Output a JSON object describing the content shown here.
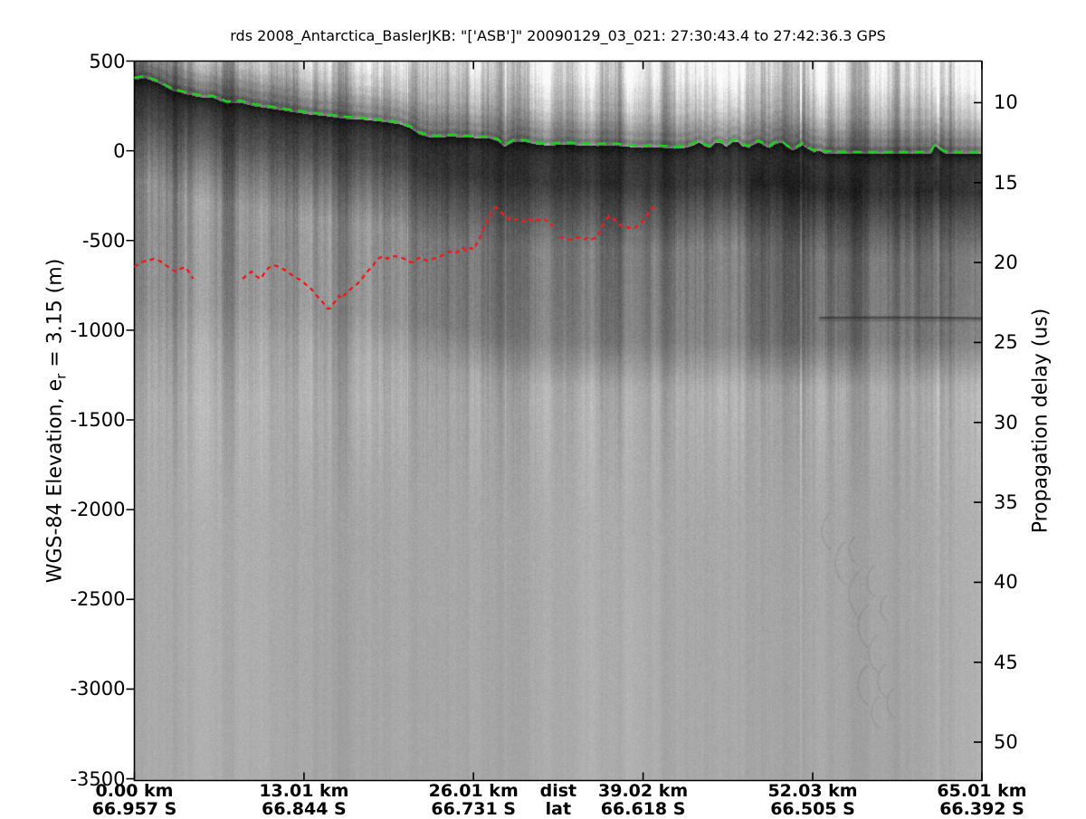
{
  "title": "rds 2008_Antarctica_BaslerJKB: \"['ASB']\"  20090129_03_021: 27:30:43.4 to 27:42:36.3 GPS",
  "axes": {
    "left": {
      "label_pre": "WGS-84 Elevation, e",
      "label_sub": "r",
      "label_post": " = 3.15 (m)",
      "ticks": [
        500,
        0,
        -500,
        -1000,
        -1500,
        -2000,
        -2500,
        -3000,
        -3500
      ]
    },
    "right": {
      "label": "Propagation delay (us)",
      "ticks": [
        10,
        15,
        20,
        25,
        30,
        35,
        40,
        45,
        50
      ]
    },
    "bottom": {
      "dist_label": "dist",
      "lat_label": "lat",
      "km_values": [
        0.0,
        13.01,
        26.01,
        39.02,
        52.03,
        65.01
      ],
      "dist_ticks": [
        "0.00 km",
        "13.01 km",
        "26.01 km",
        "39.02 km",
        "52.03 km",
        "65.01 km"
      ],
      "lat_ticks": [
        "66.957 S",
        "66.844 S",
        "66.731 S",
        "66.618 S",
        "66.505 S",
        "66.392 S"
      ]
    }
  },
  "chart_data": {
    "type": "heatmap",
    "subtype": "ice-penetrating-radargram",
    "title": "rds 2008_Antarctica_BaslerJKB: \"['ASB']\"  20090129_03_021: 27:30:43.4 to 27:42:36.3 GPS",
    "xlabel_rows": [
      "dist (km)",
      "lat (deg S)"
    ],
    "ylabel_left": "WGS-84 Elevation, e_r = 3.15 (m)",
    "ylabel_right": "Propagation delay (us)",
    "xlim": [
      0,
      65.01
    ],
    "ylim_left": [
      500,
      -3510
    ],
    "ylim_right": [
      7.4,
      52.4
    ],
    "grid": false,
    "colors": {
      "surface_pick": "#1ad21a",
      "bed_pick": "#ee1c1c",
      "frame": "#000000"
    },
    "surface_pick_km_m": [
      [
        0,
        397
      ],
      [
        0.8,
        407
      ],
      [
        1.9,
        376
      ],
      [
        2.9,
        336
      ],
      [
        4,
        316
      ],
      [
        5,
        301
      ],
      [
        6,
        296
      ],
      [
        7.1,
        265
      ],
      [
        8.1,
        270
      ],
      [
        9.2,
        250
      ],
      [
        10.6,
        235
      ],
      [
        11.9,
        220
      ],
      [
        13.3,
        205
      ],
      [
        14.7,
        195
      ],
      [
        16.1,
        180
      ],
      [
        17.5,
        175
      ],
      [
        18.9,
        165
      ],
      [
        20.3,
        150
      ],
      [
        21.1,
        129
      ],
      [
        21.8,
        94
      ],
      [
        22.5,
        79
      ],
      [
        23.2,
        74
      ],
      [
        23.9,
        79
      ],
      [
        24.6,
        79
      ],
      [
        25.3,
        74
      ],
      [
        26,
        74
      ],
      [
        26.7,
        69
      ],
      [
        27.3,
        69
      ],
      [
        27.9,
        54
      ],
      [
        28.3,
        23
      ],
      [
        28.6,
        33
      ],
      [
        29,
        49
      ],
      [
        29.4,
        54
      ],
      [
        30,
        49
      ],
      [
        30.7,
        39
      ],
      [
        31.4,
        33
      ],
      [
        32.2,
        33
      ],
      [
        33,
        38
      ],
      [
        33.9,
        33
      ],
      [
        34.7,
        33
      ],
      [
        35.5,
        28
      ],
      [
        36.4,
        33
      ],
      [
        37.2,
        28
      ],
      [
        38,
        23
      ],
      [
        38.9,
        18
      ],
      [
        39.7,
        23
      ],
      [
        40.5,
        18
      ],
      [
        41.4,
        13
      ],
      [
        42.2,
        18
      ],
      [
        42.9,
        33
      ],
      [
        43.3,
        48
      ],
      [
        43.7,
        28
      ],
      [
        44.1,
        18
      ],
      [
        44.6,
        48
      ],
      [
        45,
        43
      ],
      [
        45.4,
        23
      ],
      [
        45.8,
        48
      ],
      [
        46.2,
        53
      ],
      [
        46.6,
        28
      ],
      [
        47.1,
        18
      ],
      [
        47.5,
        38
      ],
      [
        47.9,
        48
      ],
      [
        48.3,
        28
      ],
      [
        48.7,
        18
      ],
      [
        49.1,
        38
      ],
      [
        49.6,
        48
      ],
      [
        50,
        23
      ],
      [
        50.4,
        3
      ],
      [
        50.8,
        13
      ],
      [
        51.2,
        33
      ],
      [
        51.6,
        13
      ],
      [
        52.1,
        -7
      ],
      [
        52.5,
        3
      ],
      [
        52.9,
        -12
      ],
      [
        53.6,
        -12
      ],
      [
        54.6,
        -17
      ],
      [
        55.7,
        -17
      ],
      [
        57,
        -17
      ],
      [
        58.5,
        -17
      ],
      [
        60,
        -17
      ],
      [
        61.1,
        -12
      ],
      [
        61.4,
        28
      ],
      [
        61.7,
        8
      ],
      [
        62.1,
        -12
      ],
      [
        63,
        -17
      ],
      [
        64,
        -17
      ],
      [
        64.9,
        -17
      ]
    ],
    "bed_pick_segments_km_m": [
      [
        [
          0,
          -648
        ],
        [
          0.5,
          -622
        ],
        [
          1,
          -612
        ],
        [
          1.5,
          -602
        ],
        [
          1.9,
          -612
        ],
        [
          2.3,
          -632
        ],
        [
          2.8,
          -658
        ],
        [
          3.2,
          -673
        ],
        [
          3.5,
          -658
        ],
        [
          3.9,
          -648
        ],
        [
          4.2,
          -678
        ],
        [
          4.5,
          -713
        ]
      ],
      [
        [
          8.3,
          -713
        ],
        [
          8.7,
          -688
        ],
        [
          9,
          -673
        ],
        [
          9.3,
          -698
        ],
        [
          9.7,
          -713
        ],
        [
          10,
          -678
        ],
        [
          10.3,
          -652
        ],
        [
          10.7,
          -637
        ],
        [
          11.1,
          -648
        ],
        [
          11.5,
          -663
        ],
        [
          11.9,
          -683
        ],
        [
          12.4,
          -708
        ],
        [
          12.8,
          -723
        ],
        [
          13.2,
          -748
        ],
        [
          13.6,
          -773
        ],
        [
          14,
          -809
        ],
        [
          14.4,
          -839
        ],
        [
          14.8,
          -879
        ],
        [
          15,
          -879
        ],
        [
          15.2,
          -859
        ],
        [
          15.5,
          -829
        ],
        [
          15.7,
          -808
        ],
        [
          15.9,
          -824
        ],
        [
          16.1,
          -804
        ],
        [
          16.4,
          -783
        ],
        [
          16.7,
          -763
        ],
        [
          17.1,
          -743
        ],
        [
          17.4,
          -718
        ],
        [
          17.7,
          -688
        ],
        [
          18,
          -663
        ],
        [
          18.3,
          -642
        ],
        [
          18.5,
          -617
        ],
        [
          18.8,
          -597
        ],
        [
          19.1,
          -587
        ],
        [
          19.4,
          -602
        ],
        [
          19.6,
          -592
        ],
        [
          20,
          -587
        ],
        [
          20.3,
          -592
        ],
        [
          20.7,
          -602
        ],
        [
          21,
          -617
        ],
        [
          21.4,
          -622
        ],
        [
          21.7,
          -602
        ],
        [
          22,
          -592
        ],
        [
          22.4,
          -612
        ],
        [
          22.7,
          -607
        ],
        [
          23.1,
          -597
        ],
        [
          23.5,
          -587
        ],
        [
          23.9,
          -572
        ],
        [
          24.2,
          -562
        ],
        [
          24.6,
          -572
        ],
        [
          24.9,
          -557
        ],
        [
          25.2,
          -541
        ],
        [
          25.4,
          -557
        ],
        [
          25.6,
          -546
        ],
        [
          25.8,
          -541
        ],
        [
          26,
          -551
        ],
        [
          26.2,
          -526
        ],
        [
          26.5,
          -486
        ],
        [
          26.7,
          -451
        ],
        [
          26.9,
          -415
        ],
        [
          27.1,
          -385
        ],
        [
          27.3,
          -355
        ],
        [
          27.5,
          -330
        ],
        [
          27.7,
          -314
        ],
        [
          27.9,
          -324
        ],
        [
          28.1,
          -340
        ],
        [
          28.3,
          -355
        ],
        [
          28.5,
          -370
        ],
        [
          28.7,
          -380
        ],
        [
          28.9,
          -370
        ],
        [
          29.2,
          -385
        ],
        [
          29.4,
          -380
        ],
        [
          29.6,
          -385
        ],
        [
          29.8,
          -395
        ],
        [
          30,
          -385
        ],
        [
          30.2,
          -375
        ],
        [
          30.4,
          -385
        ],
        [
          30.6,
          -395
        ],
        [
          30.8,
          -385
        ],
        [
          31,
          -385
        ],
        [
          31.2,
          -390
        ],
        [
          31.4,
          -380
        ],
        [
          31.7,
          -395
        ],
        [
          31.9,
          -410
        ],
        [
          32.1,
          -421
        ]
      ],
      [
        [
          32.6,
          -481
        ],
        [
          32.9,
          -486
        ],
        [
          33.2,
          -491
        ],
        [
          33.5,
          -496
        ],
        [
          33.7,
          -486
        ],
        [
          34,
          -481
        ],
        [
          34.3,
          -491
        ],
        [
          34.6,
          -491
        ],
        [
          34.9,
          -481
        ],
        [
          35.1,
          -491
        ],
        [
          35.4,
          -486
        ],
        [
          35.6,
          -461
        ],
        [
          35.8,
          -430
        ],
        [
          36,
          -405
        ],
        [
          36.2,
          -380
        ],
        [
          36.4,
          -365
        ],
        [
          36.7,
          -375
        ],
        [
          36.9,
          -390
        ],
        [
          37.1,
          -405
        ],
        [
          37.3,
          -415
        ],
        [
          37.5,
          -425
        ],
        [
          37.7,
          -420
        ],
        [
          37.9,
          -430
        ],
        [
          38.1,
          -425
        ],
        [
          38.3,
          -430
        ],
        [
          38.5,
          -425
        ],
        [
          38.7,
          -415
        ],
        [
          38.9,
          -400
        ],
        [
          39.2,
          -380
        ],
        [
          39.4,
          -350
        ],
        [
          39.6,
          -325
        ],
        [
          39.8,
          -314
        ],
        [
          39.9,
          -324
        ]
      ]
    ],
    "internal_reflector_km_m": [
      [
        52.6,
        -930
      ],
      [
        65.0,
        -933
      ]
    ]
  }
}
